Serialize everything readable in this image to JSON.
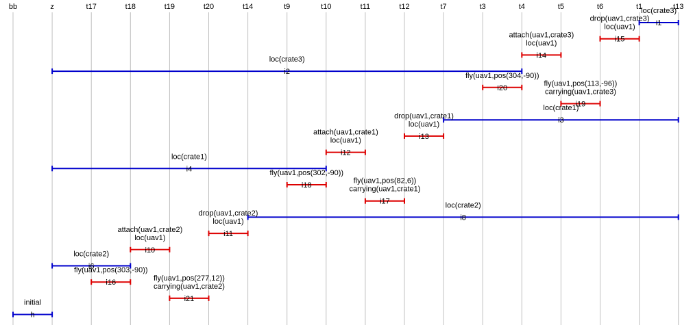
{
  "columns": [
    "bb",
    "z",
    "t17",
    "t18",
    "t19",
    "t20",
    "t14",
    "t9",
    "t10",
    "t11",
    "t12",
    "t7",
    "t3",
    "t4",
    "t5",
    "t6",
    "t1",
    "t13"
  ],
  "colors": {
    "blue": "#0000cc",
    "red": "#dd0000",
    "grid": "#c0c0c0"
  },
  "intervals": [
    {
      "id": "i1",
      "start": "t1",
      "end": "t13",
      "kind": "blue",
      "lines": [
        "loc(crate3)"
      ]
    },
    {
      "id": "i15",
      "start": "t6",
      "end": "t1",
      "kind": "red",
      "lines": [
        "drop(uav1,crate3)",
        "loc(uav1)"
      ]
    },
    {
      "id": "i14",
      "start": "t4",
      "end": "t5",
      "kind": "red",
      "lines": [
        "attach(uav1,crate3)",
        "loc(uav1)"
      ]
    },
    {
      "id": "i2",
      "start": "z",
      "end": "t4",
      "kind": "blue",
      "lines": [
        "loc(crate3)"
      ]
    },
    {
      "id": "i20",
      "start": "t3",
      "end": "t4",
      "kind": "red",
      "lines": [
        "fly(uav1,pos(304,-90))"
      ]
    },
    {
      "id": "i19",
      "start": "t5",
      "end": "t6",
      "kind": "red",
      "lines": [
        "fly(uav1,pos(113,-96))",
        "carrying(uav1,crate3)"
      ]
    },
    {
      "id": "i3",
      "start": "t7",
      "end": "t13",
      "kind": "blue",
      "lines": [
        "loc(crate1)"
      ]
    },
    {
      "id": "i13",
      "start": "t12",
      "end": "t7",
      "kind": "red",
      "lines": [
        "drop(uav1,crate1)",
        "loc(uav1)"
      ]
    },
    {
      "id": "i12",
      "start": "t10",
      "end": "t11",
      "kind": "red",
      "lines": [
        "attach(uav1,crate1)",
        "loc(uav1)"
      ]
    },
    {
      "id": "i4",
      "start": "z",
      "end": "t10",
      "kind": "blue",
      "lines": [
        "loc(crate1)"
      ]
    },
    {
      "id": "i18",
      "start": "t9",
      "end": "t10",
      "kind": "red",
      "lines": [
        "fly(uav1,pos(302,-90))"
      ]
    },
    {
      "id": "i17",
      "start": "t11",
      "end": "t12",
      "kind": "red",
      "lines": [
        "fly(uav1,pos(82,6))",
        "carrying(uav1,crate1)"
      ]
    },
    {
      "id": "i8",
      "start": "t14",
      "end": "t13",
      "kind": "blue",
      "lines": [
        "loc(crate2)"
      ]
    },
    {
      "id": "i11",
      "start": "t20",
      "end": "t14",
      "kind": "red",
      "lines": [
        "drop(uav1,crate2)",
        "loc(uav1)"
      ]
    },
    {
      "id": "i10",
      "start": "t18",
      "end": "t19",
      "kind": "red",
      "lines": [
        "attach(uav1,crate2)",
        "loc(uav1)"
      ]
    },
    {
      "id": "i6",
      "start": "z",
      "end": "t18",
      "kind": "blue",
      "lines": [
        "loc(crate2)"
      ]
    },
    {
      "id": "i16",
      "start": "t17",
      "end": "t18",
      "kind": "red",
      "lines": [
        "fly(uav1,pos(303,-90))"
      ]
    },
    {
      "id": "i21",
      "start": "t19",
      "end": "t20",
      "kind": "red",
      "lines": [
        "fly(uav1,pos(277,12))",
        "carrying(uav1,crate2)"
      ]
    },
    {
      "id": "h",
      "start": "bb",
      "end": "z",
      "kind": "blue",
      "lines": [
        "initial"
      ]
    }
  ]
}
